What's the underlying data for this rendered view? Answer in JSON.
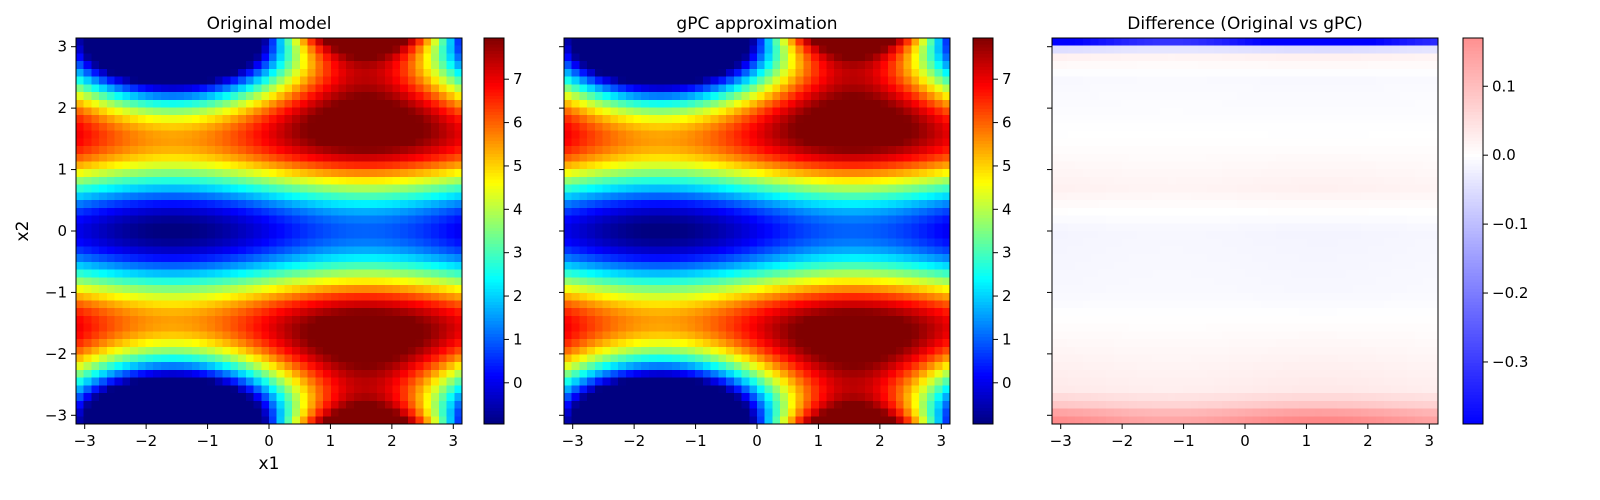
{
  "chart_data": [
    {
      "type": "heatmap",
      "title": "Original model",
      "xlabel": "x1",
      "ylabel": "x2",
      "xlim": [
        -3.14159,
        3.14159
      ],
      "ylim": [
        -3.14159,
        3.14159
      ],
      "grid_resolution": [
        50,
        50
      ],
      "function": "sin(x1) + 7*sin(x2)^2 + 0.1*x2^4*sin(x1)",
      "x_ticks": [
        "−3",
        "−2",
        "−1",
        "0",
        "1",
        "2",
        "3"
      ],
      "y_ticks": [
        "−3",
        "−2",
        "−1",
        "0",
        "1",
        "2",
        "3"
      ],
      "show_y_tick_labels": true,
      "colormap": "jet",
      "vmin": -0.95,
      "vmax": 7.95,
      "colorbar_ticks": [
        "0",
        "1",
        "2",
        "3",
        "4",
        "5",
        "6",
        "7"
      ],
      "grid": false
    },
    {
      "type": "heatmap",
      "title": "gPC approximation",
      "xlabel": "",
      "ylabel": "",
      "xlim": [
        -3.14159,
        3.14159
      ],
      "ylim": [
        -3.14159,
        3.14159
      ],
      "grid_resolution": [
        50,
        50
      ],
      "function": "sin(x1) + 7*sin(x2)^2 + 0.1*x2^4*sin(x1)",
      "x_ticks": [
        "−3",
        "−2",
        "−1",
        "0",
        "1",
        "2",
        "3"
      ],
      "y_ticks": [
        "−3",
        "−2",
        "−1",
        "0",
        "1",
        "2",
        "3"
      ],
      "show_y_tick_labels": false,
      "colormap": "jet",
      "vmin": -0.95,
      "vmax": 7.95,
      "colorbar_ticks": [
        "0",
        "1",
        "2",
        "3",
        "4",
        "5",
        "6",
        "7"
      ],
      "grid": false
    },
    {
      "type": "heatmap",
      "title": "Difference (Original vs gPC)",
      "xlabel": "",
      "ylabel": "",
      "xlim": [
        -3.14159,
        3.14159
      ],
      "ylim": [
        -3.14159,
        3.14159
      ],
      "grid_resolution": [
        50,
        50
      ],
      "function": "difference",
      "x_ticks": [
        "−3",
        "−2",
        "−1",
        "0",
        "1",
        "2",
        "3"
      ],
      "y_ticks": [
        "−3",
        "−2",
        "−1",
        "0",
        "1",
        "2",
        "3"
      ],
      "show_y_tick_labels": false,
      "colormap": "bwr",
      "vmin": -0.39,
      "vmax": 0.17,
      "colorbar_ticks": [
        "0.1",
        "0.0",
        "−0.1",
        "−0.2",
        "−0.3"
      ],
      "colorbar_tick_values": [
        0.1,
        0.0,
        -0.1,
        -0.2,
        -0.3
      ],
      "grid": false,
      "row_profile": [
        {
          "y": 3.08,
          "value": -0.37
        },
        {
          "y": 2.96,
          "value": -0.05
        },
        {
          "y": 2.84,
          "value": 0.02
        },
        {
          "y": 2.5,
          "value": -0.01
        },
        {
          "y": 1.5,
          "value": 0.0
        },
        {
          "y": 0.7,
          "value": 0.02
        },
        {
          "y": 0.0,
          "value": -0.015
        },
        {
          "y": -1.0,
          "value": -0.01
        },
        {
          "y": -1.8,
          "value": 0.01
        },
        {
          "y": -2.6,
          "value": 0.03
        },
        {
          "y": -2.84,
          "value": 0.08
        },
        {
          "y": -2.96,
          "value": 0.13
        },
        {
          "y": -3.08,
          "value": 0.16
        }
      ]
    }
  ]
}
